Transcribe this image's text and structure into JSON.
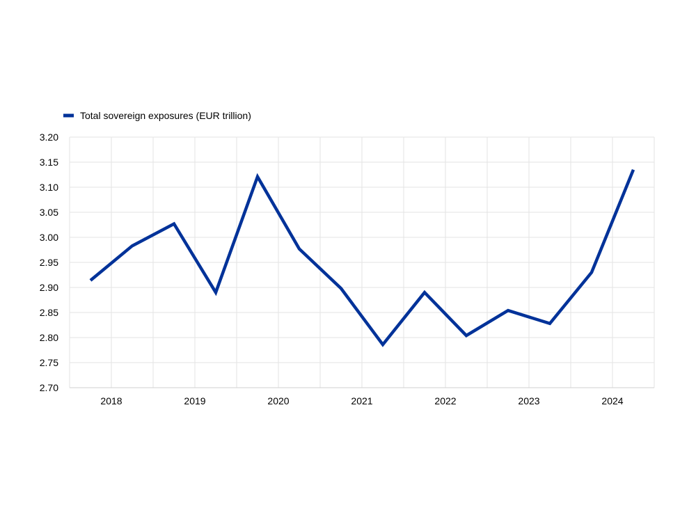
{
  "chart_data": {
    "type": "line",
    "legend_position": "top-left",
    "grid": true,
    "ylim": [
      2.7,
      3.2
    ],
    "y_ticks": [
      "2.70",
      "2.75",
      "2.80",
      "2.85",
      "2.90",
      "2.95",
      "3.00",
      "3.05",
      "3.10",
      "3.15",
      "3.20"
    ],
    "x_tick_labels": [
      "2018",
      "2019",
      "2020",
      "2021",
      "2022",
      "2023",
      "2024"
    ],
    "x": [
      "2017-H2",
      "2018-H1",
      "2018-H2",
      "2019-H1",
      "2019-H2",
      "2020-H1",
      "2020-H2",
      "2021-H1",
      "2021-H2",
      "2022-H1",
      "2022-H2",
      "2023-H1",
      "2023-H2",
      "2024-H1"
    ],
    "series": [
      {
        "name": "Total sovereign exposures (EUR trillion)",
        "color": "#003299",
        "values": [
          2.914,
          2.983,
          3.027,
          2.89,
          3.121,
          2.977,
          2.898,
          2.786,
          2.89,
          2.804,
          2.854,
          2.828,
          2.93,
          3.135
        ]
      }
    ]
  }
}
